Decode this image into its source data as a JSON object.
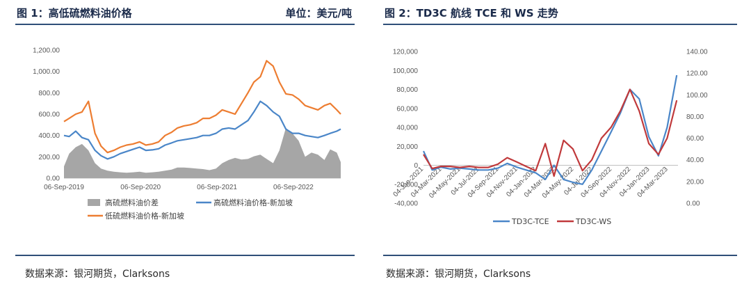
{
  "panels": {
    "left": {
      "title": "图 1：高低硫燃料油价格",
      "unit": "单位：美元/吨",
      "source": "数据来源：银河期货，Clarksons"
    },
    "right": {
      "title": "图 2：TD3C 航线 TCE 和 WS 走势",
      "source": "数据来源：银河期货，Clarksons"
    }
  },
  "chart_data": [
    {
      "type": "line",
      "title": "",
      "x_ticks": [
        "06-Sep-2019",
        "06-Sep-2020",
        "06-Sep-2021",
        "06-Sep-2022"
      ],
      "y_ticks": [
        "0.00",
        "200.00",
        "400.00",
        "600.00",
        "800.00",
        "1,000.00",
        "1,200.00"
      ],
      "ylim": [
        0,
        1200
      ],
      "xlim": [
        "2019-09-06",
        "2023-04-20"
      ],
      "legend_position": "bottom",
      "x": [
        "2019-09-06",
        "2019-10-01",
        "2019-11-01",
        "2019-12-01",
        "2020-01-01",
        "2020-02-01",
        "2020-03-01",
        "2020-04-01",
        "2020-05-01",
        "2020-06-01",
        "2020-07-01",
        "2020-08-01",
        "2020-09-01",
        "2020-10-01",
        "2020-11-01",
        "2020-12-01",
        "2021-01-01",
        "2021-02-01",
        "2021-03-01",
        "2021-04-01",
        "2021-05-01",
        "2021-06-01",
        "2021-07-01",
        "2021-08-01",
        "2021-09-01",
        "2021-10-01",
        "2021-11-01",
        "2021-12-01",
        "2022-01-01",
        "2022-02-01",
        "2022-03-01",
        "2022-04-01",
        "2022-05-01",
        "2022-06-01",
        "2022-07-01",
        "2022-08-01",
        "2022-09-01",
        "2022-10-01",
        "2022-11-01",
        "2022-12-01",
        "2023-01-01",
        "2023-02-01",
        "2023-03-01",
        "2023-04-01",
        "2023-04-20"
      ],
      "series": [
        {
          "name": "高硫燃料油价差",
          "kind": "area",
          "color": "#a6a6a6",
          "values": [
            110,
            230,
            290,
            320,
            260,
            140,
            90,
            70,
            60,
            55,
            50,
            55,
            60,
            50,
            55,
            60,
            70,
            80,
            100,
            100,
            95,
            90,
            85,
            75,
            90,
            140,
            170,
            190,
            175,
            180,
            205,
            220,
            180,
            140,
            260,
            470,
            420,
            350,
            200,
            240,
            220,
            170,
            270,
            240,
            150
          ]
        },
        {
          "name": "高硫燃料油价格-新加坡",
          "kind": "line",
          "color": "#4a86c8",
          "values": [
            400,
            390,
            440,
            380,
            360,
            260,
            210,
            180,
            200,
            230,
            250,
            270,
            290,
            260,
            265,
            275,
            310,
            330,
            350,
            360,
            370,
            380,
            400,
            400,
            420,
            460,
            470,
            460,
            500,
            540,
            620,
            720,
            680,
            620,
            580,
            460,
            420,
            420,
            400,
            390,
            380,
            400,
            420,
            440,
            460
          ]
        },
        {
          "name": "低硫燃料油价格-新加坡",
          "kind": "line",
          "color": "#ed7d31",
          "values": [
            530,
            560,
            600,
            620,
            720,
            420,
            300,
            240,
            260,
            290,
            310,
            320,
            340,
            310,
            320,
            340,
            400,
            430,
            470,
            490,
            500,
            520,
            560,
            560,
            590,
            640,
            620,
            600,
            700,
            800,
            900,
            950,
            1100,
            1050,
            900,
            790,
            780,
            740,
            680,
            660,
            640,
            680,
            700,
            640,
            600
          ]
        }
      ]
    },
    {
      "type": "line",
      "title": "",
      "x_ticks": [
        "04-Jan-2021",
        "04-Mar-2021",
        "04-May-2021",
        "04-Jul-2021",
        "04-Sep-2021",
        "04-Nov-2021",
        "04-Jan-2022",
        "04-Mar-2022",
        "04-May-2022",
        "04-Jul-2022",
        "04-Sep-2022",
        "04-Nov-2022",
        "04-Jan-2023",
        "04-Mar-2023"
      ],
      "y_ticks_left": [
        "-40,000",
        "-20,000",
        "0",
        "20,000",
        "40,000",
        "60,000",
        "80,000",
        "100,000",
        "120,000"
      ],
      "y_ticks_right": [
        "0.00",
        "20.00",
        "40.00",
        "60.00",
        "80.00",
        "100.00",
        "120.00",
        "140.00"
      ],
      "ylim_left": [
        -40000,
        120000
      ],
      "ylim_right": [
        0,
        140
      ],
      "xlim": [
        "2021-01-04",
        "2023-04-05"
      ],
      "legend_position": "bottom",
      "x": [
        "2021-01-04",
        "2021-02-01",
        "2021-03-01",
        "2021-04-01",
        "2021-05-01",
        "2021-06-01",
        "2021-07-01",
        "2021-08-01",
        "2021-09-01",
        "2021-10-01",
        "2021-11-01",
        "2021-12-01",
        "2022-01-01",
        "2022-02-01",
        "2022-03-01",
        "2022-04-01",
        "2022-05-01",
        "2022-06-01",
        "2022-07-01",
        "2022-08-01",
        "2022-09-01",
        "2022-10-01",
        "2022-11-01",
        "2022-12-01",
        "2023-01-01",
        "2023-02-01",
        "2023-03-01",
        "2023-04-01"
      ],
      "series": [
        {
          "name": "TD3C-TCE",
          "axis": "left",
          "color": "#4a86c8",
          "values": [
            15000,
            -5000,
            -2000,
            -4000,
            -3000,
            -4000,
            -5000,
            -5000,
            -3000,
            2000,
            -2000,
            -5000,
            -8000,
            -15000,
            0,
            -15000,
            -18000,
            -20000,
            -5000,
            15000,
            35000,
            55000,
            80000,
            70000,
            30000,
            10000,
            40000,
            95000
          ]
        },
        {
          "name": "TD3C-WS",
          "axis": "right",
          "color": "#c0393b",
          "values": [
            45,
            32,
            34,
            34,
            33,
            34,
            33,
            33,
            36,
            42,
            38,
            34,
            30,
            55,
            25,
            58,
            50,
            30,
            40,
            60,
            70,
            85,
            105,
            85,
            55,
            45,
            60,
            95
          ]
        }
      ]
    }
  ]
}
